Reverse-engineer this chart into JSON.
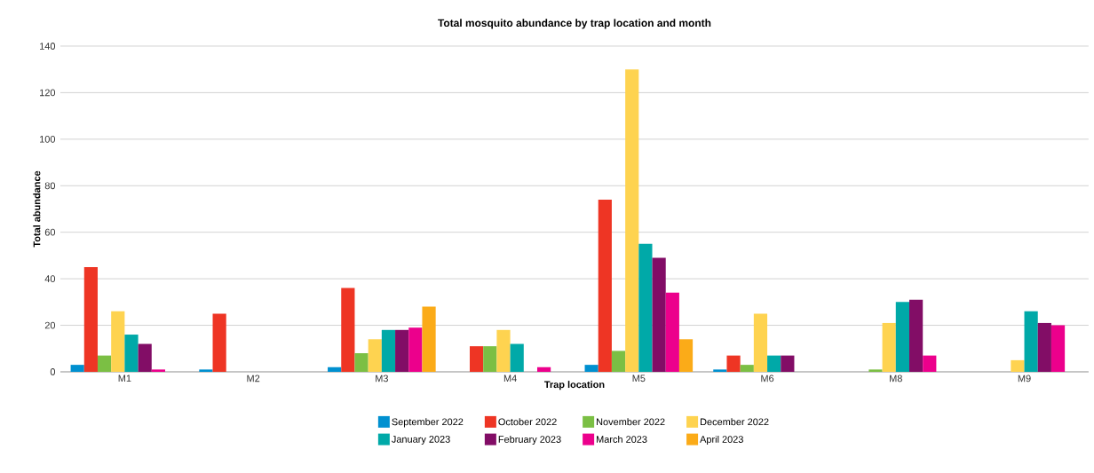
{
  "chart_data": {
    "type": "bar",
    "title": "Total mosquito abundance by trap location and month",
    "xlabel": "Trap location",
    "ylabel": "Total abundance",
    "categories": [
      "M1",
      "M2",
      "M3",
      "M4",
      "M5",
      "M6",
      "M8",
      "M9"
    ],
    "series": [
      {
        "name": "September 2022",
        "color": "#0090d0",
        "values": [
          3,
          1,
          2,
          0,
          3,
          1,
          0,
          0
        ]
      },
      {
        "name": "October 2022",
        "color": "#ee3524",
        "values": [
          45,
          25,
          36,
          11,
          74,
          7,
          0,
          0
        ]
      },
      {
        "name": "November 2022",
        "color": "#7bbf44",
        "values": [
          7,
          0,
          8,
          11,
          9,
          3,
          1,
          0
        ]
      },
      {
        "name": "December 2022",
        "color": "#fed350",
        "values": [
          26,
          0,
          14,
          18,
          130,
          25,
          21,
          5
        ]
      },
      {
        "name": "January 2023",
        "color": "#00a9a8",
        "values": [
          16,
          0,
          18,
          12,
          55,
          7,
          30,
          26
        ]
      },
      {
        "name": "February 2023",
        "color": "#820d66",
        "values": [
          12,
          0,
          18,
          0,
          49,
          7,
          31,
          21
        ]
      },
      {
        "name": "March 2023",
        "color": "#ec008c",
        "values": [
          1,
          0,
          19,
          2,
          34,
          0,
          7,
          20
        ]
      },
      {
        "name": "April 2023",
        "color": "#fbab18",
        "values": [
          0,
          0,
          28,
          0,
          14,
          0,
          0,
          0
        ]
      }
    ],
    "ylim": [
      0,
      140
    ],
    "yticks": [
      0,
      20,
      40,
      60,
      80,
      100,
      120,
      140
    ],
    "grid": "y",
    "legend": "bottom"
  }
}
